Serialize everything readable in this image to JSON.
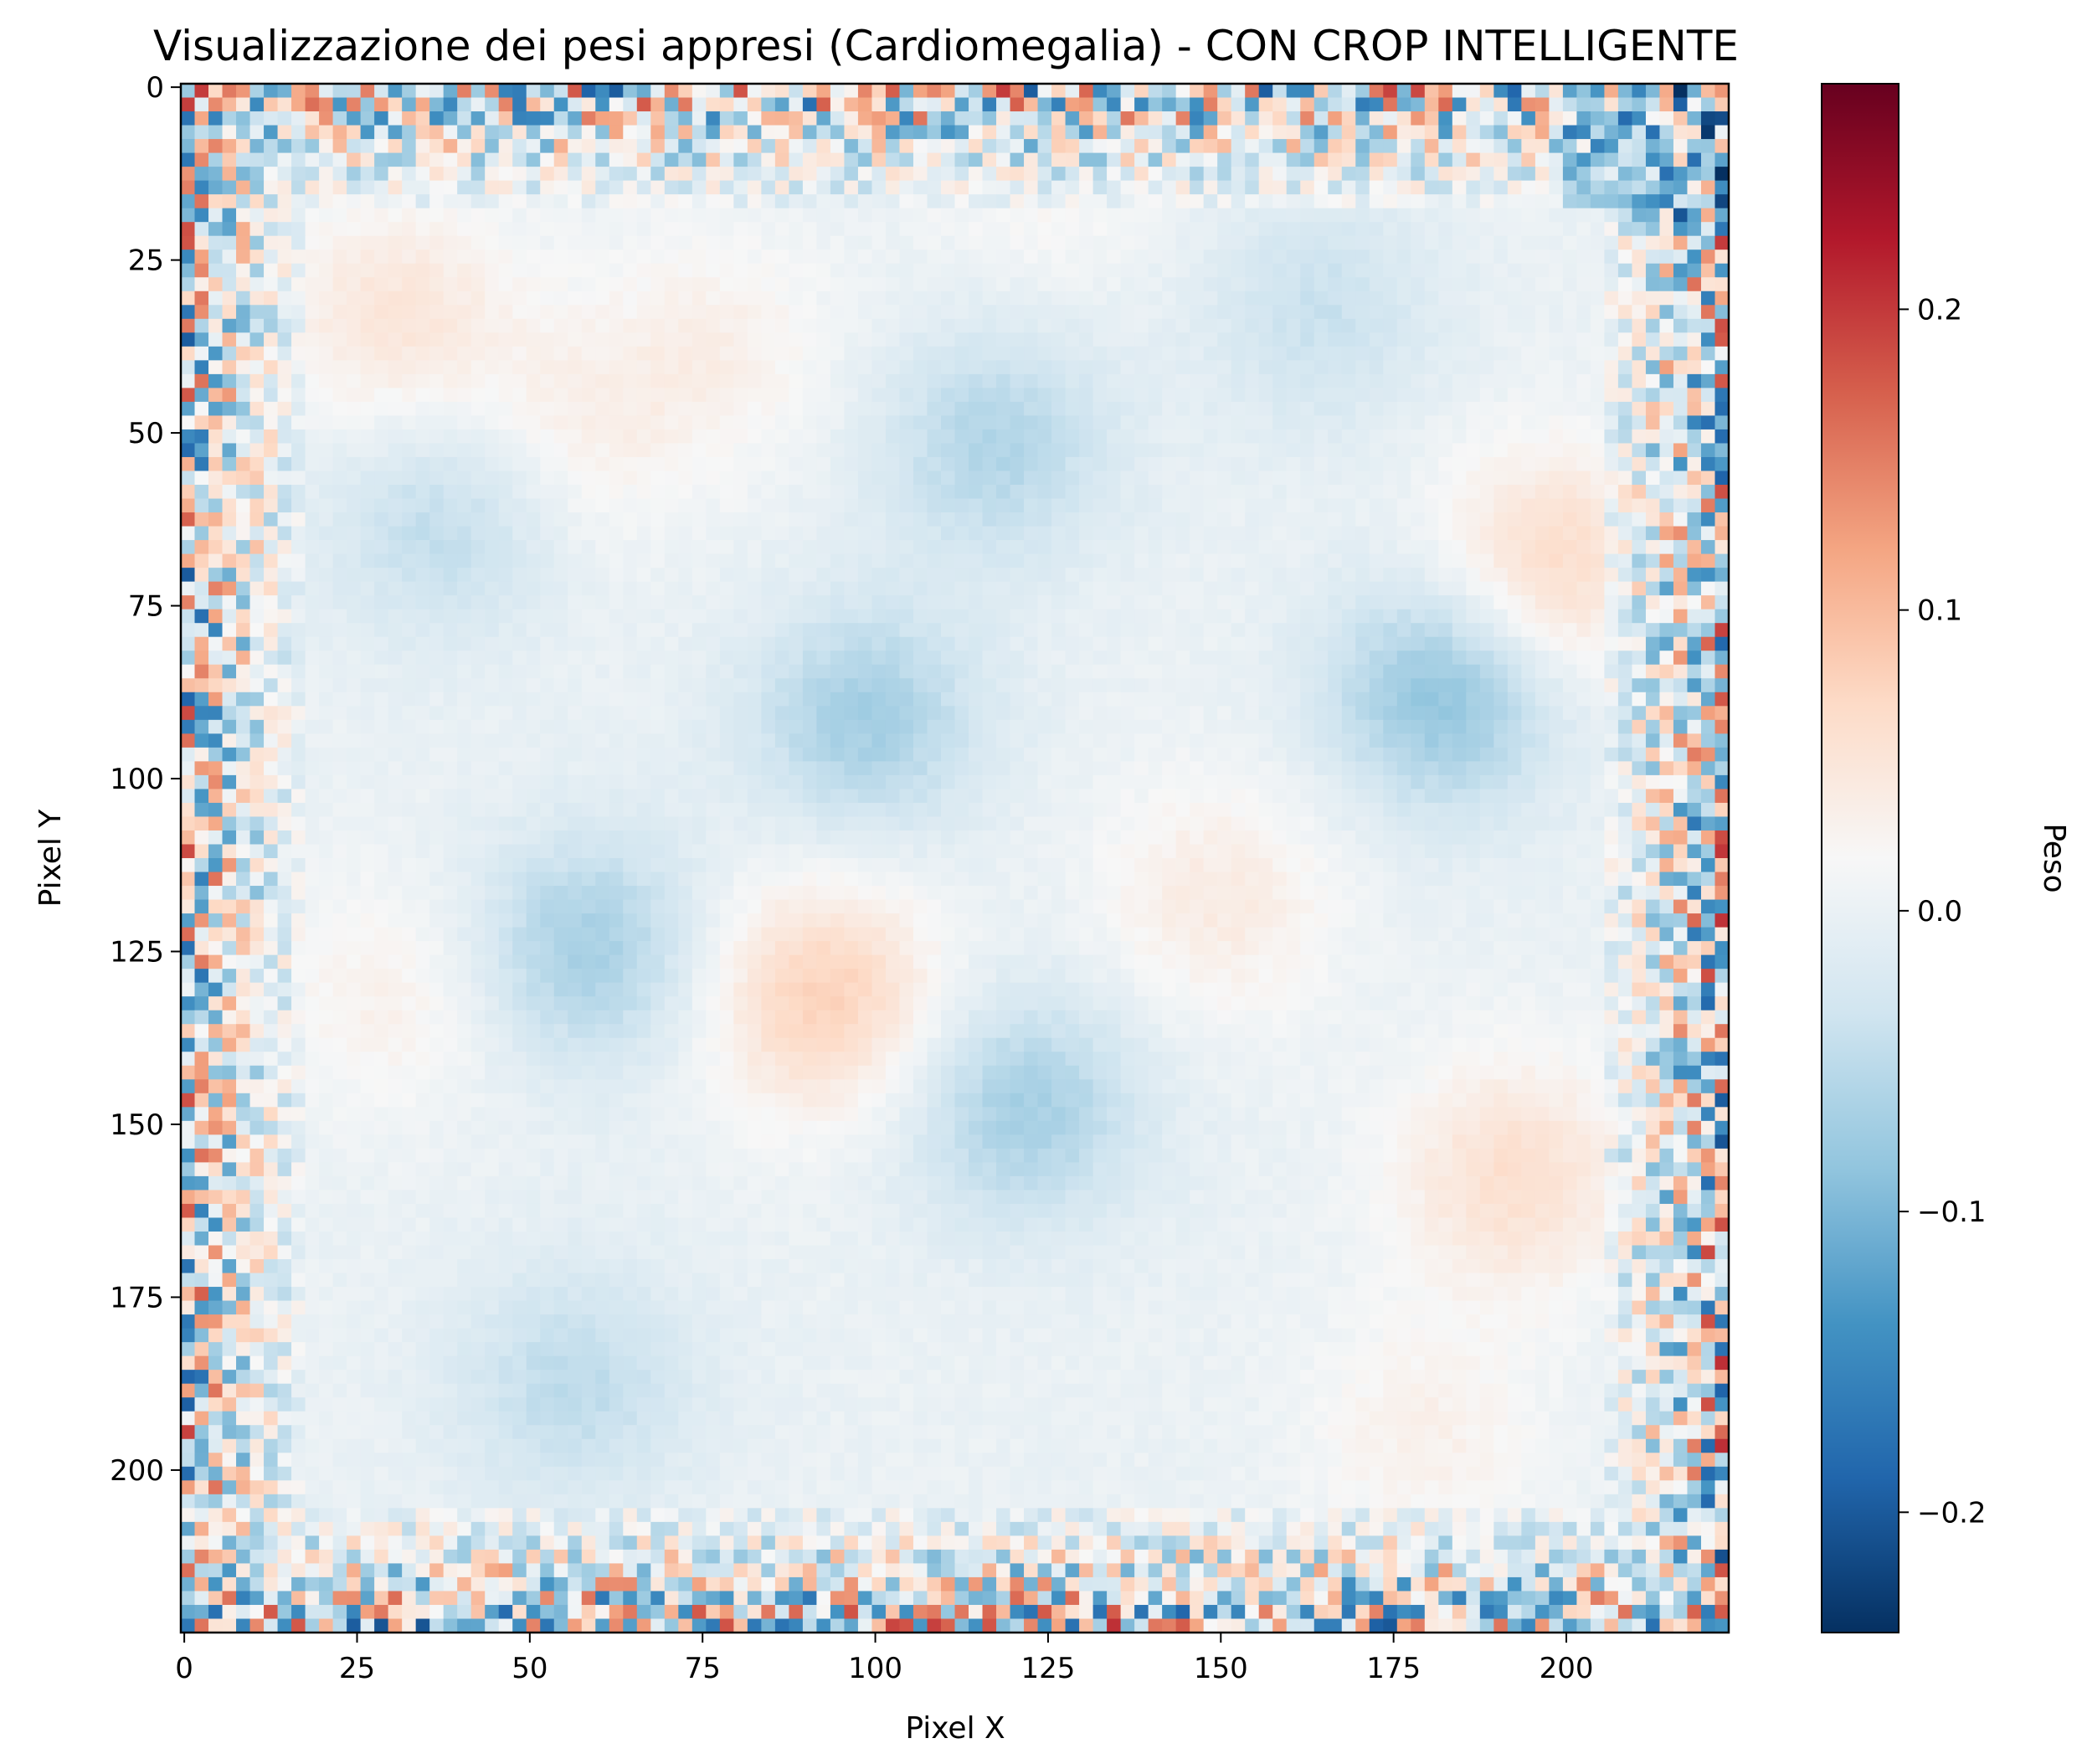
{
  "chart_data": {
    "type": "heatmap",
    "title": "Visualizzazione dei pesi appresi (Cardiomegalia) - CON CROP INTELLIGENTE",
    "xlabel": "Pixel X",
    "ylabel": "Pixel Y",
    "xlim": [
      -0.5,
      223.5
    ],
    "ylim": [
      223.5,
      -0.5
    ],
    "x_ticks": [
      "0",
      "25",
      "50",
      "75",
      "100",
      "125",
      "150",
      "175",
      "200"
    ],
    "y_ticks": [
      "0",
      "25",
      "50",
      "75",
      "100",
      "125",
      "150",
      "175",
      "200"
    ],
    "colormap": "RdBu_r",
    "colorbar": {
      "label": "Peso",
      "vmin": -0.24,
      "vmax": 0.275,
      "ticks": [
        "−0.2",
        "−0.1",
        "0.0",
        "0.1",
        "0.2"
      ]
    },
    "blobs": [
      {
        "x": 31,
        "y": 34,
        "w": -0.14,
        "value": 0.05
      },
      {
        "x": 57,
        "y": 50,
        "w": 0.0,
        "value": 0.03
      },
      {
        "x": 38,
        "y": 63,
        "w": 0.0,
        "value": -0.05
      },
      {
        "x": 78,
        "y": 38,
        "w": 0.0,
        "value": 0.03
      },
      {
        "x": 118,
        "y": 52,
        "w": 0.0,
        "value": -0.06
      },
      {
        "x": 165,
        "y": 33,
        "w": 0.0,
        "value": -0.04
      },
      {
        "x": 198,
        "y": 70,
        "w": 0.0,
        "value": 0.07
      },
      {
        "x": 183,
        "y": 88,
        "w": 0.0,
        "value": -0.09
      },
      {
        "x": 99,
        "y": 92,
        "w": 0.0,
        "value": -0.07
      },
      {
        "x": 59,
        "y": 125,
        "w": 0.0,
        "value": -0.07
      },
      {
        "x": 93,
        "y": 132,
        "w": 0.0,
        "value": 0.08
      },
      {
        "x": 122,
        "y": 148,
        "w": 0.0,
        "value": -0.07
      },
      {
        "x": 150,
        "y": 118,
        "w": 0.0,
        "value": 0.04
      },
      {
        "x": 193,
        "y": 158,
        "w": 0.0,
        "value": 0.06
      },
      {
        "x": 57,
        "y": 188,
        "w": 0.0,
        "value": -0.05
      },
      {
        "x": 180,
        "y": 195,
        "w": 0.0,
        "value": 0.03
      },
      {
        "x": 30,
        "y": 132,
        "w": 0.0,
        "value": 0.03
      },
      {
        "x": 125,
        "y": 15,
        "w": 0.0,
        "value": 0.02
      }
    ]
  }
}
